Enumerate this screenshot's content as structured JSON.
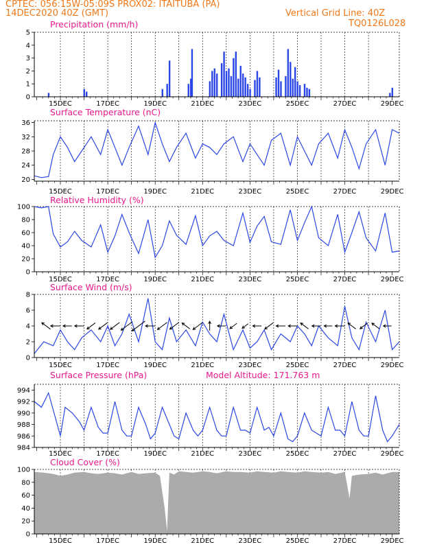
{
  "header": {
    "line1": "CPTEC:    056:15W-05:09S    PROX02: ITAITUBA (PA)",
    "line2_left": "14DEC2020 40Z (GMT)",
    "line2_right": "Vertical Grid Line: 40Z",
    "code": "TQ0126L028"
  },
  "colors": {
    "header": "#f07818",
    "title": "#e8188c",
    "line": "#2b46e6",
    "cloud": "#ababab",
    "grid": "#000000"
  },
  "chart_data": [
    {
      "type": "bar",
      "title": "Precipitation  (mm/h)",
      "x_tick_labels": [
        "15DEC",
        "17DEC",
        "19DEC",
        "21DEC",
        "23DEC",
        "25DEC",
        "27DEC",
        "29DEC"
      ],
      "ylim": [
        0,
        5
      ],
      "y_ticks": [
        "0",
        "1",
        "2",
        "3",
        "4",
        "5"
      ],
      "grid": "vertical dashed at 00Z each day",
      "events": [
        {
          "day": 14.5,
          "value": 0.3
        },
        {
          "day": 16.0,
          "value": 0.6
        },
        {
          "day": 16.1,
          "value": 0.4
        },
        {
          "day": 19.3,
          "value": 0.6
        },
        {
          "day": 19.5,
          "value": 1.0
        },
        {
          "day": 19.6,
          "value": 2.8
        },
        {
          "day": 20.4,
          "value": 1.0
        },
        {
          "day": 20.5,
          "value": 1.4
        },
        {
          "day": 20.55,
          "value": 3.7
        },
        {
          "day": 21.3,
          "value": 1.2
        },
        {
          "day": 21.4,
          "value": 2.0
        },
        {
          "day": 21.5,
          "value": 2.2
        },
        {
          "day": 21.6,
          "value": 1.8
        },
        {
          "day": 21.8,
          "value": 2.6
        },
        {
          "day": 21.9,
          "value": 3.5
        },
        {
          "day": 22.0,
          "value": 2.0
        },
        {
          "day": 22.1,
          "value": 2.2
        },
        {
          "day": 22.2,
          "value": 1.6
        },
        {
          "day": 22.3,
          "value": 3.0
        },
        {
          "day": 22.4,
          "value": 3.5
        },
        {
          "day": 22.5,
          "value": 1.4
        },
        {
          "day": 22.6,
          "value": 2.4
        },
        {
          "day": 22.7,
          "value": 1.8
        },
        {
          "day": 22.8,
          "value": 1.5
        },
        {
          "day": 22.9,
          "value": 1.0
        },
        {
          "day": 23.0,
          "value": 0.6
        },
        {
          "day": 23.2,
          "value": 1.3
        },
        {
          "day": 23.3,
          "value": 2.0
        },
        {
          "day": 23.4,
          "value": 1.5
        },
        {
          "day": 24.1,
          "value": 1.5
        },
        {
          "day": 24.2,
          "value": 2.1
        },
        {
          "day": 24.3,
          "value": 1.2
        },
        {
          "day": 24.5,
          "value": 1.6
        },
        {
          "day": 24.6,
          "value": 3.7
        },
        {
          "day": 24.7,
          "value": 2.7
        },
        {
          "day": 24.8,
          "value": 1.4
        },
        {
          "day": 24.9,
          "value": 2.3
        },
        {
          "day": 25.0,
          "value": 1.2
        },
        {
          "day": 25.1,
          "value": 0.9
        },
        {
          "day": 25.3,
          "value": 1.0
        },
        {
          "day": 25.4,
          "value": 0.7
        },
        {
          "day": 25.5,
          "value": 0.6
        },
        {
          "day": 28.9,
          "value": 0.3
        },
        {
          "day": 29.0,
          "value": 0.7
        }
      ]
    },
    {
      "type": "line",
      "title": "Surface Temperature (nC)",
      "x_tick_labels": [
        "15DEC",
        "17DEC",
        "19DEC",
        "21DEC",
        "23DEC",
        "25DEC",
        "27DEC",
        "29DEC"
      ],
      "ylim": [
        19.5,
        36.5
      ],
      "y_ticks": [
        "20",
        "24",
        "28",
        "32",
        "36"
      ],
      "series": [
        {
          "x": [
            13.9,
            14.2,
            14.5,
            14.7,
            15.0,
            15.3,
            15.6,
            15.9,
            16.3,
            16.7,
            17.0,
            17.3,
            17.6,
            17.9,
            18.3,
            18.7,
            19.0,
            19.3,
            19.6,
            19.9,
            20.3,
            20.7,
            21.0,
            21.3,
            21.6,
            21.9,
            22.3,
            22.7,
            23.0,
            23.3,
            23.6,
            23.9,
            24.3,
            24.7,
            25.0,
            25.3,
            25.6,
            25.9,
            26.3,
            26.7,
            27.0,
            27.3,
            27.6,
            27.9,
            28.3,
            28.7,
            29.0,
            29.3
          ],
          "y": [
            21.0,
            20.5,
            20.8,
            27.0,
            32.0,
            29.0,
            25.0,
            28.0,
            32.0,
            27.0,
            34.0,
            29.0,
            24.0,
            29.0,
            35.0,
            27.0,
            36.0,
            30.0,
            25.0,
            29.0,
            33.0,
            26.0,
            30.0,
            29.0,
            27.0,
            30.0,
            32.0,
            25.0,
            30.0,
            27.0,
            24.0,
            31.0,
            33.0,
            24.0,
            32.0,
            28.0,
            24.0,
            30.0,
            33.0,
            26.0,
            34.0,
            29.0,
            23.0,
            30.0,
            34.0,
            24.0,
            34.0,
            33.0
          ]
        }
      ]
    },
    {
      "type": "line",
      "title": "Relative Humidity (%)",
      "x_tick_labels": [
        "15DEC",
        "17DEC",
        "19DEC",
        "21DEC",
        "23DEC",
        "25DEC",
        "27DEC",
        "29DEC"
      ],
      "ylim": [
        0,
        100
      ],
      "y_ticks": [
        "0",
        "20",
        "40",
        "60",
        "80",
        "100"
      ],
      "series": [
        {
          "x": [
            13.9,
            14.2,
            14.5,
            14.7,
            15.0,
            15.3,
            15.6,
            15.9,
            16.3,
            16.7,
            17.0,
            17.3,
            17.6,
            17.9,
            18.3,
            18.7,
            19.0,
            19.3,
            19.6,
            19.9,
            20.3,
            20.7,
            21.0,
            21.3,
            21.6,
            21.9,
            22.3,
            22.7,
            23.0,
            23.3,
            23.6,
            23.9,
            24.3,
            24.7,
            25.0,
            25.3,
            25.6,
            25.9,
            26.3,
            26.7,
            27.0,
            27.3,
            27.6,
            27.9,
            28.3,
            28.7,
            29.0,
            29.3
          ],
          "y": [
            100,
            98,
            100,
            58,
            38,
            46,
            62,
            48,
            38,
            72,
            30,
            55,
            88,
            60,
            28,
            80,
            22,
            40,
            78,
            56,
            42,
            86,
            40,
            55,
            62,
            48,
            40,
            90,
            45,
            70,
            85,
            46,
            42,
            95,
            48,
            75,
            100,
            52,
            40,
            88,
            30,
            60,
            92,
            52,
            32,
            90,
            30,
            32
          ]
        }
      ]
    },
    {
      "type": "line",
      "title": "Surface Wind (m/s)",
      "x_tick_labels": [
        "15DEC",
        "17DEC",
        "19DEC",
        "21DEC",
        "23DEC",
        "25DEC",
        "27DEC",
        "29DEC"
      ],
      "ylim": [
        0,
        8
      ],
      "y_ticks": [
        "0",
        "2",
        "4",
        "6",
        "8"
      ],
      "series": [
        {
          "x": [
            13.9,
            14.3,
            14.7,
            15.0,
            15.3,
            15.6,
            15.9,
            16.3,
            16.7,
            17.0,
            17.3,
            17.6,
            17.9,
            18.3,
            18.7,
            19.0,
            19.3,
            19.6,
            19.9,
            20.3,
            20.7,
            21.0,
            21.3,
            21.6,
            21.9,
            22.3,
            22.7,
            23.0,
            23.3,
            23.6,
            23.9,
            24.3,
            24.7,
            25.0,
            25.3,
            25.6,
            25.9,
            26.3,
            26.7,
            27.0,
            27.3,
            27.6,
            27.9,
            28.3,
            28.7,
            29.0,
            29.3
          ],
          "y": [
            0.5,
            2.0,
            1.5,
            3.5,
            2.0,
            1.0,
            2.5,
            3.5,
            2.0,
            4.0,
            1.5,
            3.0,
            5.5,
            2.0,
            7.5,
            2.0,
            1.0,
            5.0,
            2.0,
            3.5,
            1.5,
            4.5,
            3.0,
            2.0,
            5.5,
            1.0,
            3.5,
            1.2,
            2.0,
            3.5,
            1.0,
            3.0,
            2.0,
            4.0,
            3.0,
            1.5,
            4.0,
            2.5,
            1.5,
            6.5,
            2.5,
            1.0,
            4.5,
            2.0,
            6.0,
            1.0,
            2.0
          ]
        }
      ],
      "arrows": [
        {
          "day": 14.4,
          "dir": "ul",
          "len": 1.0
        },
        {
          "day": 14.8,
          "dir": "l",
          "len": 0.8
        },
        {
          "day": 15.3,
          "dir": "l",
          "len": 0.6
        },
        {
          "day": 15.8,
          "dir": "l",
          "len": 0.7
        },
        {
          "day": 16.3,
          "dir": "dl",
          "len": 0.9
        },
        {
          "day": 16.8,
          "dir": "dl",
          "len": 1.0
        },
        {
          "day": 17.3,
          "dir": "dl",
          "len": 1.1
        },
        {
          "day": 17.8,
          "dir": "dl",
          "len": 1.6
        },
        {
          "day": 18.3,
          "dir": "dl",
          "len": 2.0
        },
        {
          "day": 18.8,
          "dir": "l",
          "len": 0.8
        },
        {
          "day": 19.3,
          "dir": "dl",
          "len": 1.2
        },
        {
          "day": 19.8,
          "dir": "dl",
          "len": 1.0
        },
        {
          "day": 20.3,
          "dir": "ul",
          "len": 0.8
        },
        {
          "day": 20.8,
          "dir": "dl",
          "len": 1.2
        },
        {
          "day": 21.3,
          "dir": "u",
          "len": 0.7
        },
        {
          "day": 21.8,
          "dir": "l",
          "len": 0.5
        },
        {
          "day": 22.3,
          "dir": "dl",
          "len": 0.6
        },
        {
          "day": 22.8,
          "dir": "dl",
          "len": 0.4
        },
        {
          "day": 23.3,
          "dir": "l",
          "len": 0.6
        },
        {
          "day": 23.8,
          "dir": "dl",
          "len": 0.9
        },
        {
          "day": 24.3,
          "dir": "l",
          "len": 0.7
        },
        {
          "day": 24.8,
          "dir": "l",
          "len": 0.6
        },
        {
          "day": 25.3,
          "dir": "ul",
          "len": 0.8
        },
        {
          "day": 25.8,
          "dir": "l",
          "len": 0.6
        },
        {
          "day": 26.3,
          "dir": "l",
          "len": 0.5
        },
        {
          "day": 26.8,
          "dir": "l",
          "len": 0.8
        },
        {
          "day": 27.3,
          "dir": "ul",
          "len": 0.8
        },
        {
          "day": 27.8,
          "dir": "dl",
          "len": 0.7
        },
        {
          "day": 28.3,
          "dir": "ul",
          "len": 0.7
        },
        {
          "day": 28.8,
          "dir": "l",
          "len": 0.5
        }
      ]
    },
    {
      "type": "line",
      "title": "Surface Pressure (hPa)",
      "annotation": "Model Altitude: 171.763 m",
      "x_tick_labels": [
        "15DEC",
        "17DEC",
        "19DEC",
        "21DEC",
        "23DEC",
        "25DEC",
        "27DEC",
        "29DEC"
      ],
      "ylim": [
        984,
        995
      ],
      "y_ticks": [
        "984",
        "986",
        "988",
        "990",
        "992",
        "994"
      ],
      "series": [
        {
          "x": [
            13.9,
            14.2,
            14.5,
            14.8,
            15.0,
            15.2,
            15.5,
            15.8,
            16.0,
            16.3,
            16.6,
            16.8,
            17.0,
            17.3,
            17.6,
            17.8,
            18.0,
            18.3,
            18.6,
            18.8,
            19.0,
            19.3,
            19.6,
            19.8,
            20.0,
            20.3,
            20.6,
            20.8,
            21.0,
            21.3,
            21.6,
            21.8,
            22.0,
            22.3,
            22.6,
            22.8,
            23.0,
            23.3,
            23.6,
            23.8,
            24.0,
            24.3,
            24.6,
            24.8,
            25.0,
            25.3,
            25.6,
            25.8,
            26.0,
            26.3,
            26.6,
            26.8,
            27.0,
            27.3,
            27.6,
            27.8,
            28.0,
            28.3,
            28.6,
            28.8,
            29.0,
            29.3
          ],
          "y": [
            992,
            991,
            993.5,
            989,
            986,
            991,
            990,
            988.5,
            987,
            991,
            987.5,
            986.5,
            986.5,
            992,
            987,
            986,
            986,
            991,
            988,
            985.5,
            986.5,
            991,
            988,
            986,
            985.5,
            990,
            987,
            986,
            987,
            991,
            987,
            986,
            986,
            991,
            987,
            987,
            986.5,
            991,
            987,
            987.5,
            986,
            990,
            985.5,
            985,
            986,
            990,
            987,
            986.5,
            986,
            991,
            987,
            987,
            986,
            992,
            987,
            986,
            986,
            993,
            987,
            985,
            986,
            988
          ]
        }
      ]
    },
    {
      "type": "area",
      "title": "Cloud Cover (%)",
      "x_tick_labels": [
        "15DEC",
        "17DEC",
        "19DEC",
        "21DEC",
        "23DEC",
        "25DEC",
        "27DEC",
        "29DEC"
      ],
      "ylim": [
        0,
        100
      ],
      "y_ticks": [
        "0",
        "20",
        "40",
        "60",
        "80",
        "100"
      ],
      "series": [
        {
          "x": [
            13.9,
            14.3,
            14.7,
            15.0,
            15.3,
            15.6,
            16.0,
            16.3,
            16.6,
            17.0,
            17.3,
            17.6,
            18.0,
            18.3,
            18.6,
            19.0,
            19.2,
            19.4,
            19.5,
            19.6,
            19.8,
            20.0,
            20.3,
            20.6,
            21.0,
            21.3,
            21.6,
            22.0,
            22.3,
            22.6,
            23.0,
            23.3,
            23.6,
            24.0,
            24.3,
            24.6,
            25.0,
            25.3,
            25.6,
            26.0,
            26.3,
            26.6,
            27.0,
            27.2,
            27.3,
            27.6,
            28.0,
            28.3,
            28.6,
            29.0,
            29.3
          ],
          "y": [
            96,
            95,
            93,
            90,
            92,
            95,
            96,
            94,
            93,
            95,
            94,
            92,
            96,
            93,
            94,
            95,
            90,
            40,
            5,
            95,
            92,
            97,
            96,
            95,
            97,
            96,
            94,
            97,
            96,
            96,
            95,
            97,
            96,
            95,
            97,
            96,
            95,
            97,
            96,
            95,
            96,
            93,
            96,
            55,
            90,
            92,
            93,
            95,
            92,
            96,
            96
          ]
        }
      ]
    }
  ]
}
